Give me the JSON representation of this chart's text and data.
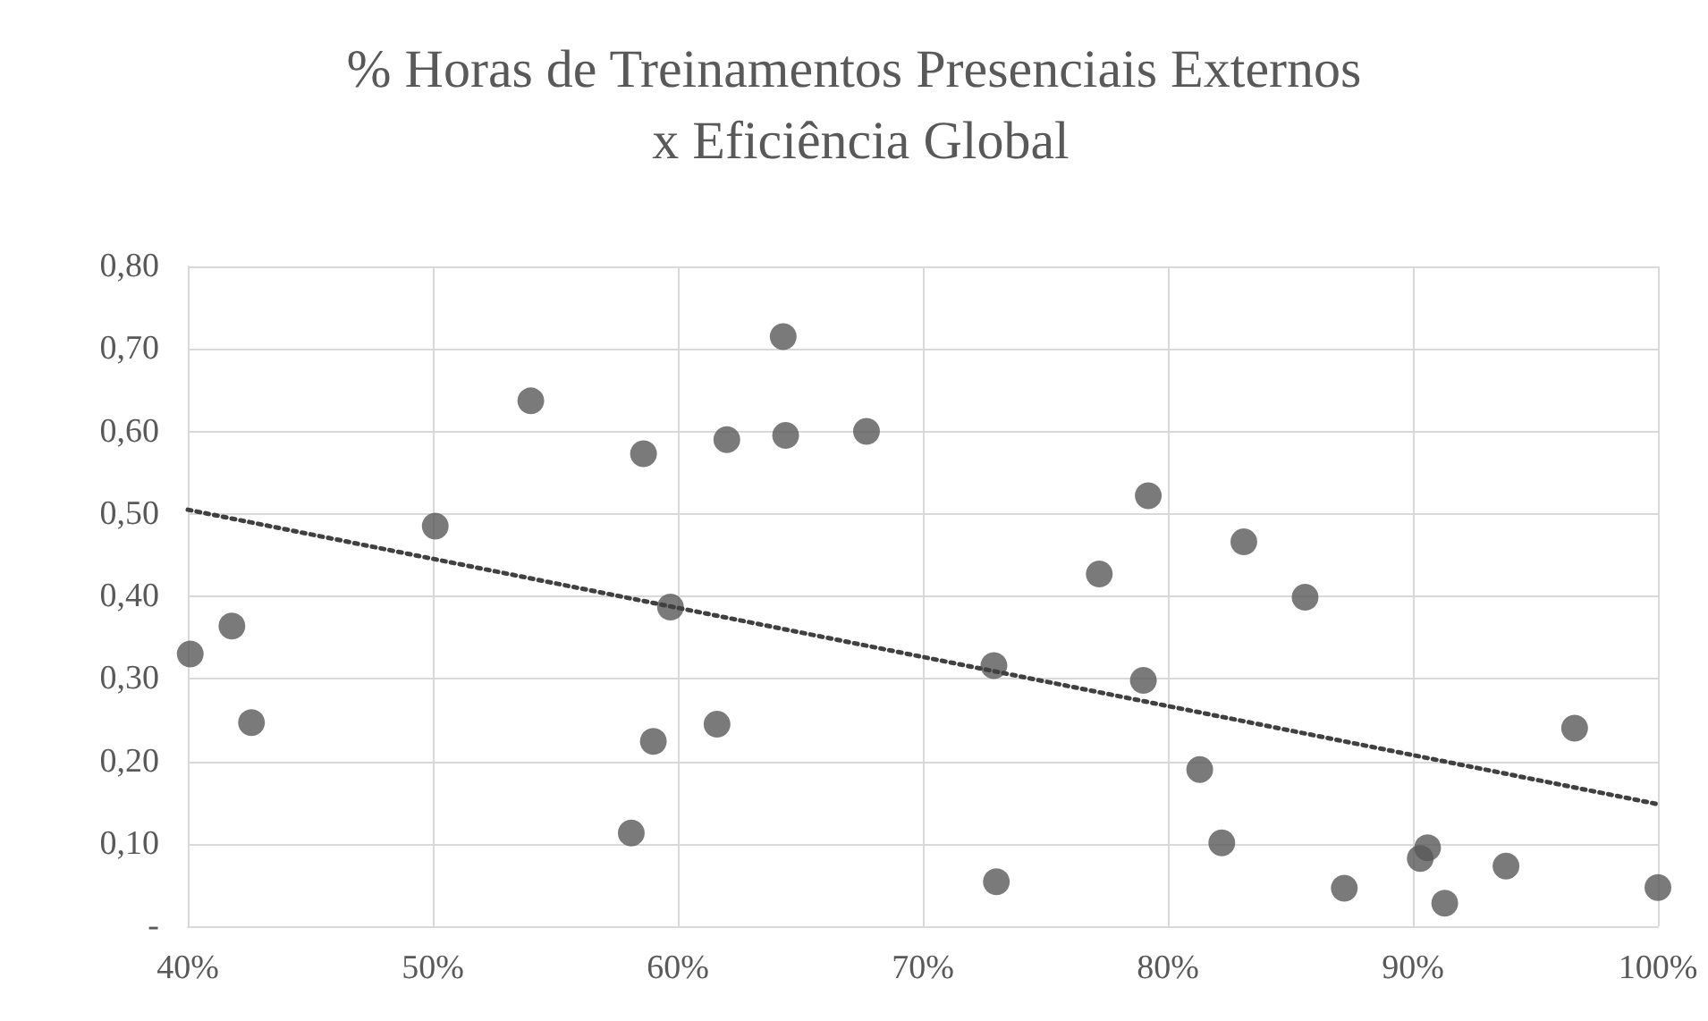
{
  "chart_data": {
    "type": "scatter",
    "title": "% Horas de Treinamentos Presenciais Externos x Eficiência Global",
    "x": [
      40.1,
      41.8,
      42.6,
      50.1,
      54.0,
      58.6,
      58.1,
      59.0,
      59.7,
      61.6,
      62.0,
      64.3,
      64.4,
      67.7,
      72.9,
      73.0,
      77.2,
      79.0,
      79.2,
      81.3,
      82.2,
      83.1,
      85.6,
      87.2,
      90.3,
      90.6,
      91.3,
      93.8,
      96.6,
      100
    ],
    "series": [
      {
        "type": "scatter",
        "color": "#595959",
        "values": [
          0.33,
          0.364,
          0.247,
          0.485,
          0.637,
          0.573,
          0.113,
          0.224,
          0.387,
          0.245,
          0.59,
          0.715,
          0.595,
          0.6,
          0.316,
          0.054,
          0.427,
          0.298,
          0.522,
          0.19,
          0.101,
          0.466,
          0.399,
          0.046,
          0.082,
          0.095,
          0.028,
          0.073,
          0.24,
          0.047
        ]
      },
      {
        "type": "line",
        "color": "#404040",
        "line_style": "dotted",
        "marker": "none",
        "x": [
          40,
          100
        ],
        "values": [
          0.505,
          0.148
        ]
      }
    ],
    "marker": "circle",
    "xlim": [
      40,
      100
    ],
    "xticks": [
      {
        "value": 40,
        "label": "40%"
      },
      {
        "value": 50,
        "label": "50%"
      },
      {
        "value": 60,
        "label": "60%"
      },
      {
        "value": 70,
        "label": "70%"
      },
      {
        "value": 80,
        "label": "80%"
      },
      {
        "value": 90,
        "label": "90%"
      },
      {
        "value": 100,
        "label": "100%"
      }
    ],
    "ylim": [
      0,
      0.8
    ],
    "yticks": [
      {
        "value": 0,
        "label": "-"
      },
      {
        "value": 0.1,
        "label": "0,10"
      },
      {
        "value": 0.2,
        "label": "0,20"
      },
      {
        "value": 0.3,
        "label": "0,30"
      },
      {
        "value": 0.4,
        "label": "0,40"
      },
      {
        "value": 0.5,
        "label": "0,50"
      },
      {
        "value": 0.6,
        "label": "0,60"
      },
      {
        "value": 0.7,
        "label": "0,70"
      },
      {
        "value": 0.8,
        "label": "0,80"
      }
    ],
    "grid": true
  }
}
